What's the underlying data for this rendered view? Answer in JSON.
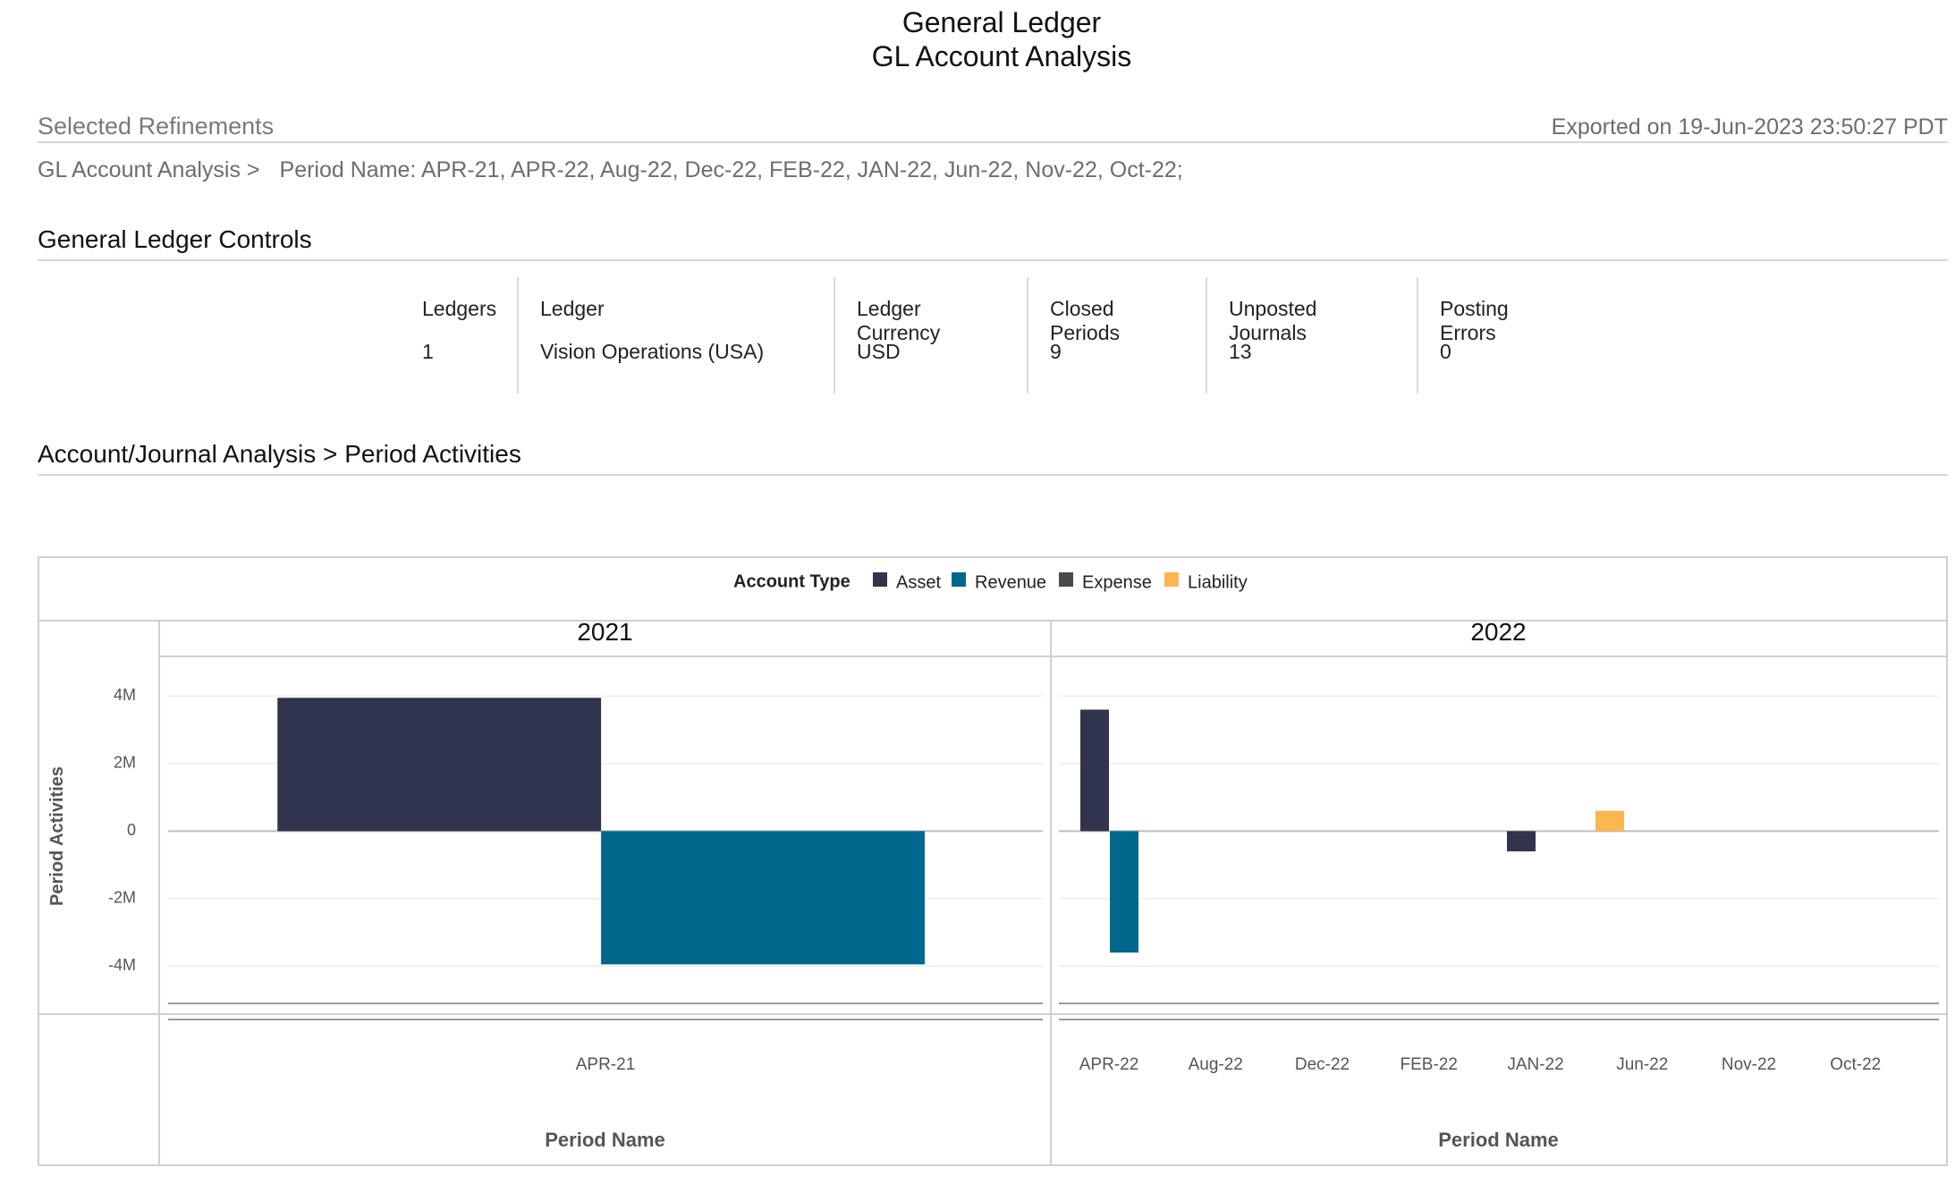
{
  "report": {
    "title": "General Ledger",
    "subtitle": "GL Account Analysis"
  },
  "refinements": {
    "label": "Selected Refinements",
    "exported": "Exported on 19-Jun-2023 23:50:27 PDT",
    "breadcrumb_root": "GL Account Analysis >",
    "breadcrumb_filter": "Period Name: APR-21, APR-22, Aug-22, Dec-22, FEB-22, JAN-22, Jun-22, Nov-22, Oct-22;"
  },
  "controls": {
    "section_title": "General Ledger Controls",
    "columns": [
      {
        "header": "Ledgers",
        "value": "1"
      },
      {
        "header": "Ledger",
        "value": "Vision Operations (USA)"
      },
      {
        "header": "Ledger Currency",
        "value": "USD"
      },
      {
        "header": "Closed Periods",
        "value": "9"
      },
      {
        "header": "Unposted Journals",
        "value": "13"
      },
      {
        "header": "Posting Errors",
        "value": "0"
      }
    ]
  },
  "analysis": {
    "section_title": "Account/Journal Analysis > Period Activities"
  },
  "chart_data": {
    "type": "bar",
    "legend_title": "Account Type",
    "legend_position": "top-center",
    "series_colors": {
      "Asset": "#30354d",
      "Revenue": "#00688c",
      "Expense": "#4a4a4a",
      "Liability": "#fbb64f"
    },
    "ylabel": "Period Activities",
    "xlabel": "Period Name",
    "ylim": [
      -5000000,
      4700000
    ],
    "y_ticks": [
      {
        "value": 4000000,
        "label": "4M"
      },
      {
        "value": 2000000,
        "label": "2M"
      },
      {
        "value": 0,
        "label": "0"
      },
      {
        "value": -2000000,
        "label": "-2M"
      },
      {
        "value": -4000000,
        "label": "-4M"
      }
    ],
    "grid": true,
    "panels": [
      {
        "label": "2021",
        "categories": [
          "APR-21"
        ],
        "series": [
          {
            "name": "Asset",
            "values": [
              3950000
            ]
          },
          {
            "name": "Revenue",
            "values": [
              -3950000
            ]
          },
          {
            "name": "Expense",
            "values": [
              0
            ]
          },
          {
            "name": "Liability",
            "values": [
              0
            ]
          }
        ]
      },
      {
        "label": "2022",
        "categories": [
          "APR-22",
          "Aug-22",
          "Dec-22",
          "FEB-22",
          "JAN-22",
          "Jun-22",
          "Nov-22",
          "Oct-22"
        ],
        "series": [
          {
            "name": "Asset",
            "values": [
              3600000,
              0,
              0,
              0,
              -600000,
              0,
              0,
              0
            ]
          },
          {
            "name": "Revenue",
            "values": [
              -3600000,
              0,
              0,
              0,
              0,
              0,
              0,
              0
            ]
          },
          {
            "name": "Expense",
            "values": [
              0,
              0,
              0,
              0,
              0,
              0,
              0,
              0
            ]
          },
          {
            "name": "Liability",
            "values": [
              0,
              0,
              0,
              0,
              600000,
              0,
              0,
              0
            ]
          }
        ]
      }
    ]
  }
}
